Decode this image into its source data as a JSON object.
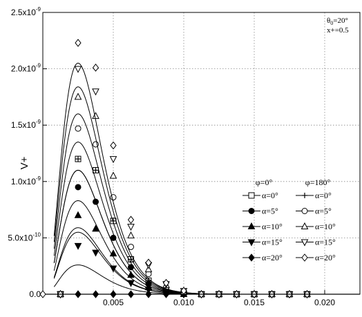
{
  "chart_data": {
    "type": "line",
    "title": "",
    "xlabel": "",
    "ylabel": "V+",
    "xlim": [
      0.0,
      0.0225
    ],
    "ylim": [
      0,
      2.5e-09
    ],
    "grid": true,
    "xticks": [
      {
        "v": 0.005,
        "label": "0.005"
      },
      {
        "v": 0.01,
        "label": "0.010"
      },
      {
        "v": 0.015,
        "label": "0.015"
      },
      {
        "v": 0.02,
        "label": "0.020"
      }
    ],
    "yticks": [
      {
        "v": 0,
        "base": "0.0",
        "sup": ""
      },
      {
        "v": 5e-10,
        "base": "5.0x10",
        "sup": "-10"
      },
      {
        "v": 1e-09,
        "base": "1.0x10",
        "sup": "-9"
      },
      {
        "v": 1.5e-09,
        "base": "1.5x10",
        "sup": "-9"
      },
      {
        "v": 2e-09,
        "base": "2.0x10",
        "sup": "-9"
      },
      {
        "v": 2.5e-09,
        "base": "2.5x10",
        "sup": "-9"
      }
    ],
    "annotations": {
      "theta": "θ",
      "theta_sub": "0",
      "theta_value": "=20°",
      "x_plus": "x+=0.5"
    },
    "legend": {
      "position": "right",
      "group_headers": [
        "φ=0°",
        "φ=180°"
      ],
      "entries": [
        {
          "phi0_label": "α=0°",
          "phi0_marker": "square-open",
          "phi180_label": "α=0°",
          "phi180_marker": "plus"
        },
        {
          "phi0_label": "α=5°",
          "phi0_marker": "circle-filled",
          "phi180_label": "α=5°",
          "phi180_marker": "circle-open"
        },
        {
          "phi0_label": "α=10°",
          "phi0_marker": "triangle-up-filled",
          "phi180_label": "α=10°",
          "phi180_marker": "triangle-up-open"
        },
        {
          "phi0_label": "α=15°",
          "phi0_marker": "triangle-down-filled",
          "phi180_label": "α=15°",
          "phi180_marker": "triangle-down-open"
        },
        {
          "phi0_label": "α=20°",
          "phi0_marker": "diamond-filled",
          "phi180_label": "α=20°",
          "phi180_marker": "diamond-open"
        }
      ]
    },
    "x": [
      0.0,
      0.00125,
      0.0025,
      0.00375,
      0.005,
      0.00625,
      0.0075,
      0.00875,
      0.01,
      0.01125,
      0.0125,
      0.01375,
      0.015,
      0.01625,
      0.0175,
      0.01875
    ],
    "series": [
      {
        "phi": "0",
        "alpha": "0",
        "marker": "square-open",
        "curve_peak": 1.1e-09,
        "values": [
          0,
          0,
          1.2e-09,
          1.1e-09,
          6.5e-10,
          3.1e-10,
          1.2e-10,
          4e-11,
          1e-11,
          0,
          0,
          0,
          0,
          0,
          0,
          0
        ]
      },
      {
        "phi": "0",
        "alpha": "5",
        "marker": "circle-filled",
        "curve_peak": 8.3e-10,
        "values": [
          0,
          0,
          9.5e-10,
          8.2e-10,
          5e-10,
          2.4e-10,
          9e-11,
          3e-11,
          1e-11,
          0,
          0,
          0,
          0,
          0,
          0,
          0
        ]
      },
      {
        "phi": "0",
        "alpha": "10",
        "marker": "triangle-up-filled",
        "curve_peak": 5.9e-10,
        "values": [
          0,
          0,
          7e-10,
          5.8e-10,
          3.6e-10,
          1.7e-10,
          6e-11,
          2e-11,
          0,
          0,
          0,
          0,
          0,
          0,
          0,
          0
        ]
      },
      {
        "phi": "0",
        "alpha": "15",
        "marker": "triangle-down-filled",
        "curve_peak": 5.5e-10,
        "values": [
          0,
          0,
          4.3e-10,
          3.7e-10,
          2.3e-10,
          1e-10,
          4e-11,
          1e-11,
          0,
          0,
          0,
          0,
          0,
          0,
          0,
          0
        ]
      },
      {
        "phi": "0",
        "alpha": "20",
        "marker": "diamond-filled",
        "curve_peak": 2.6e-10,
        "values": [
          0,
          0,
          0,
          0,
          0,
          0,
          0,
          0,
          0,
          0,
          0,
          0,
          0,
          0,
          0,
          0
        ]
      },
      {
        "phi": "180",
        "alpha": "0",
        "marker": "plus",
        "curve_peak": 1.1e-09,
        "values": [
          0,
          0,
          1.2e-09,
          1.1e-09,
          6.5e-10,
          3.1e-10,
          1.2e-10,
          4e-11,
          1e-11,
          0,
          0,
          0,
          0,
          0,
          0,
          0
        ]
      },
      {
        "phi": "180",
        "alpha": "5",
        "marker": "circle-open",
        "curve_peak": 1.35e-09,
        "values": [
          0,
          0,
          1.47e-09,
          1.33e-09,
          8.6e-10,
          4.2e-10,
          1.8e-10,
          6e-11,
          2e-11,
          0,
          0,
          0,
          0,
          0,
          0,
          0
        ]
      },
      {
        "phi": "180",
        "alpha": "10",
        "marker": "triangle-up-open",
        "curve_peak": 1.6e-09,
        "values": [
          0,
          0,
          1.75e-09,
          1.58e-09,
          1.05e-09,
          5.2e-10,
          2.2e-10,
          8e-11,
          2e-11,
          0,
          0,
          0,
          0,
          0,
          0,
          0
        ]
      },
      {
        "phi": "180",
        "alpha": "15",
        "marker": "triangle-down-open",
        "curve_peak": 1.84e-09,
        "values": [
          0,
          0,
          2e-09,
          1.8e-09,
          1.2e-09,
          6e-10,
          2.6e-10,
          9e-11,
          3e-11,
          0,
          0,
          0,
          0,
          0,
          0,
          0
        ]
      },
      {
        "phi": "180",
        "alpha": "20",
        "marker": "diamond-open",
        "curve_peak": 2.05e-09,
        "values": [
          0,
          0,
          2.23e-09,
          2.01e-09,
          1.32e-09,
          6.6e-10,
          2.8e-10,
          1e-10,
          3e-11,
          0,
          0,
          0,
          0,
          0,
          0,
          0
        ]
      }
    ]
  }
}
